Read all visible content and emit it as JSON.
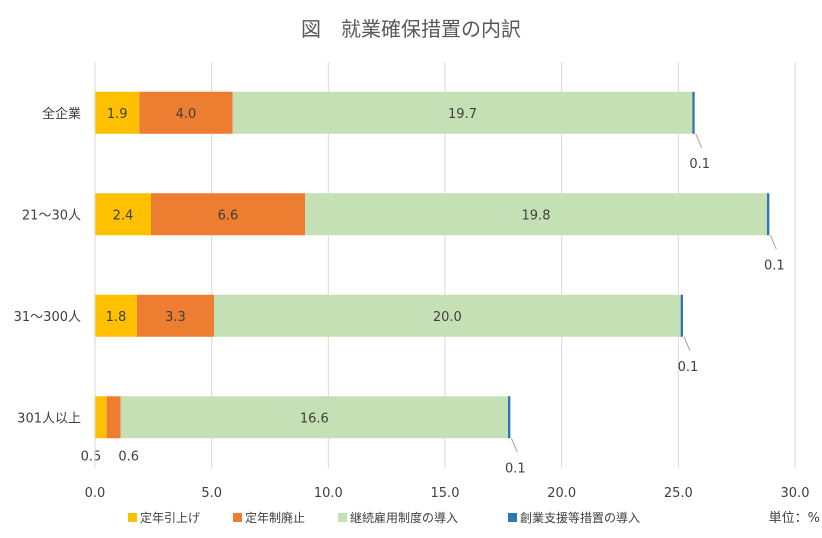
{
  "chart_data": {
    "type": "bar",
    "orientation": "horizontal",
    "stacked": true,
    "title": "図　就業確保措置の内訳",
    "unit_label": "単位：%",
    "categories": [
      "全企業",
      "21～30人",
      "31～300人",
      "301人以上"
    ],
    "xlim": [
      0,
      30
    ],
    "x_ticks": [
      "0.0",
      "5.0",
      "10.0",
      "15.0",
      "20.0",
      "25.0",
      "30.0"
    ],
    "grid": true,
    "legend_position": "bottom",
    "series": [
      {
        "name": "定年引上げ",
        "color": "#FFC000",
        "values": [
          1.9,
          2.4,
          1.8,
          0.5
        ],
        "labels": [
          "1.9",
          "2.4",
          "1.8",
          "0.5"
        ]
      },
      {
        "name": "定年制廃止",
        "color": "#ED7D31",
        "values": [
          4.0,
          6.6,
          3.3,
          0.6
        ],
        "labels": [
          "4.0",
          "6.6",
          "3.3",
          "0.6"
        ]
      },
      {
        "name": "継続雇用制度の導入",
        "color": "#C5E0B4",
        "values": [
          19.7,
          19.8,
          20.0,
          16.6
        ],
        "labels": [
          "19.7",
          "19.8",
          "20.0",
          "16.6"
        ]
      },
      {
        "name": "創業支援等措置の導入",
        "color": "#2E75B6",
        "values": [
          0.1,
          0.1,
          0.1,
          0.1
        ],
        "labels": [
          "0.1",
          "0.1",
          "0.1",
          "0.1"
        ]
      }
    ]
  }
}
